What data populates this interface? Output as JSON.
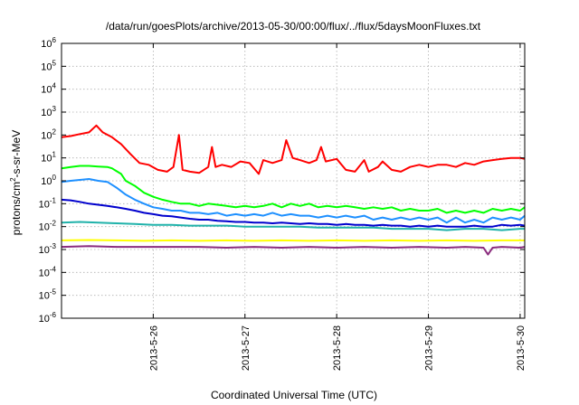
{
  "chart_data": {
    "type": "line",
    "title": "/data/run/goesPlots/archive/2013-05-30/00:00/flux/../flux/5daysMoonFluxes.txt",
    "xlabel": "Coordinated Universal Time (UTC)",
    "ylabel": "protons/cm²-s-sr-MeV",
    "ylabel_parts": [
      "protons/cm",
      "2",
      "-s-sr-MeV"
    ],
    "y_scale": "log",
    "ylim": [
      1e-06,
      1000000.0
    ],
    "xlim": [
      0,
      5.05
    ],
    "x_ticks": [
      {
        "x": 1,
        "label": "2013-5-26"
      },
      {
        "x": 2,
        "label": "2013-5-27"
      },
      {
        "x": 3,
        "label": "2013-5-28"
      },
      {
        "x": 4,
        "label": "2013-5-29"
      },
      {
        "x": 5,
        "label": "2013-5-30"
      }
    ],
    "y_ticks": [
      {
        "exp": -6,
        "base": "10",
        "power": "-6"
      },
      {
        "exp": -5,
        "base": "10",
        "power": "-5"
      },
      {
        "exp": -4,
        "base": "10",
        "power": "-4"
      },
      {
        "exp": -3,
        "base": "10",
        "power": "-3"
      },
      {
        "exp": -2,
        "base": "10",
        "power": "-2"
      },
      {
        "exp": -1,
        "base": "10",
        "power": "-1"
      },
      {
        "exp": 0,
        "base": "10",
        "power": "0"
      },
      {
        "exp": 1,
        "base": "10",
        "power": "1"
      },
      {
        "exp": 2,
        "base": "10",
        "power": "2"
      },
      {
        "exp": 3,
        "base": "10",
        "power": "3"
      },
      {
        "exp": 4,
        "base": "10",
        "power": "4"
      },
      {
        "exp": 5,
        "base": "10",
        "power": "5"
      },
      {
        "exp": 6,
        "base": "10",
        "power": "6"
      }
    ],
    "grid": true,
    "series": [
      {
        "color": "#ff0000",
        "values": [
          [
            0.0,
            80
          ],
          [
            0.1,
            90
          ],
          [
            0.2,
            110
          ],
          [
            0.3,
            130
          ],
          [
            0.38,
            260
          ],
          [
            0.45,
            130
          ],
          [
            0.55,
            80
          ],
          [
            0.65,
            40
          ],
          [
            0.75,
            15
          ],
          [
            0.85,
            6
          ],
          [
            0.95,
            5
          ],
          [
            1.05,
            3
          ],
          [
            1.15,
            2.5
          ],
          [
            1.22,
            4
          ],
          [
            1.28,
            100
          ],
          [
            1.32,
            3
          ],
          [
            1.4,
            2.5
          ],
          [
            1.5,
            2.2
          ],
          [
            1.6,
            4
          ],
          [
            1.64,
            30
          ],
          [
            1.68,
            4
          ],
          [
            1.75,
            5
          ],
          [
            1.85,
            4
          ],
          [
            1.95,
            7
          ],
          [
            2.05,
            6
          ],
          [
            2.15,
            2
          ],
          [
            2.2,
            8
          ],
          [
            2.3,
            6
          ],
          [
            2.4,
            8
          ],
          [
            2.45,
            60
          ],
          [
            2.52,
            10
          ],
          [
            2.6,
            8
          ],
          [
            2.7,
            6
          ],
          [
            2.78,
            8
          ],
          [
            2.83,
            30
          ],
          [
            2.88,
            7
          ],
          [
            3.0,
            9
          ],
          [
            3.1,
            3
          ],
          [
            3.2,
            2.5
          ],
          [
            3.3,
            8
          ],
          [
            3.35,
            2.5
          ],
          [
            3.45,
            4
          ],
          [
            3.5,
            7
          ],
          [
            3.6,
            3
          ],
          [
            3.7,
            2.5
          ],
          [
            3.8,
            4
          ],
          [
            3.9,
            5
          ],
          [
            4.0,
            4
          ],
          [
            4.1,
            5
          ],
          [
            4.2,
            5
          ],
          [
            4.3,
            4
          ],
          [
            4.4,
            6
          ],
          [
            4.5,
            5
          ],
          [
            4.6,
            7
          ],
          [
            4.7,
            8
          ],
          [
            4.8,
            9
          ],
          [
            4.9,
            10
          ],
          [
            5.0,
            10
          ],
          [
            5.05,
            9
          ]
        ]
      },
      {
        "color": "#00ff00",
        "values": [
          [
            0.0,
            3.5
          ],
          [
            0.1,
            4
          ],
          [
            0.2,
            4.5
          ],
          [
            0.3,
            4.5
          ],
          [
            0.4,
            4.2
          ],
          [
            0.5,
            4
          ],
          [
            0.55,
            3.5
          ],
          [
            0.65,
            2
          ],
          [
            0.7,
            1
          ],
          [
            0.8,
            0.6
          ],
          [
            0.9,
            0.3
          ],
          [
            1.0,
            0.2
          ],
          [
            1.1,
            0.15
          ],
          [
            1.2,
            0.12
          ],
          [
            1.3,
            0.1
          ],
          [
            1.4,
            0.1
          ],
          [
            1.5,
            0.08
          ],
          [
            1.6,
            0.1
          ],
          [
            1.7,
            0.09
          ],
          [
            1.8,
            0.08
          ],
          [
            1.9,
            0.07
          ],
          [
            2.0,
            0.08
          ],
          [
            2.1,
            0.07
          ],
          [
            2.2,
            0.08
          ],
          [
            2.3,
            0.1
          ],
          [
            2.4,
            0.07
          ],
          [
            2.5,
            0.1
          ],
          [
            2.6,
            0.08
          ],
          [
            2.7,
            0.1
          ],
          [
            2.8,
            0.07
          ],
          [
            2.9,
            0.08
          ],
          [
            3.0,
            0.07
          ],
          [
            3.1,
            0.08
          ],
          [
            3.2,
            0.07
          ],
          [
            3.3,
            0.06
          ],
          [
            3.4,
            0.07
          ],
          [
            3.5,
            0.06
          ],
          [
            3.6,
            0.07
          ],
          [
            3.7,
            0.05
          ],
          [
            3.8,
            0.06
          ],
          [
            3.9,
            0.05
          ],
          [
            4.0,
            0.05
          ],
          [
            4.1,
            0.06
          ],
          [
            4.2,
            0.04
          ],
          [
            4.3,
            0.05
          ],
          [
            4.4,
            0.04
          ],
          [
            4.5,
            0.05
          ],
          [
            4.6,
            0.04
          ],
          [
            4.7,
            0.06
          ],
          [
            4.8,
            0.05
          ],
          [
            4.9,
            0.06
          ],
          [
            5.0,
            0.05
          ],
          [
            5.05,
            0.07
          ]
        ]
      },
      {
        "color": "#1e90ff",
        "values": [
          [
            0.0,
            0.9
          ],
          [
            0.1,
            1
          ],
          [
            0.2,
            1.1
          ],
          [
            0.3,
            1.2
          ],
          [
            0.4,
            1
          ],
          [
            0.5,
            0.9
          ],
          [
            0.6,
            0.5
          ],
          [
            0.7,
            0.25
          ],
          [
            0.8,
            0.15
          ],
          [
            0.9,
            0.1
          ],
          [
            1.0,
            0.07
          ],
          [
            1.1,
            0.06
          ],
          [
            1.2,
            0.05
          ],
          [
            1.3,
            0.05
          ],
          [
            1.4,
            0.04
          ],
          [
            1.5,
            0.04
          ],
          [
            1.6,
            0.035
          ],
          [
            1.7,
            0.04
          ],
          [
            1.8,
            0.03
          ],
          [
            1.9,
            0.035
          ],
          [
            2.0,
            0.03
          ],
          [
            2.1,
            0.035
          ],
          [
            2.2,
            0.03
          ],
          [
            2.3,
            0.04
          ],
          [
            2.4,
            0.03
          ],
          [
            2.5,
            0.035
          ],
          [
            2.6,
            0.03
          ],
          [
            2.7,
            0.03
          ],
          [
            2.8,
            0.025
          ],
          [
            2.9,
            0.03
          ],
          [
            3.0,
            0.025
          ],
          [
            3.1,
            0.03
          ],
          [
            3.2,
            0.025
          ],
          [
            3.3,
            0.03
          ],
          [
            3.4,
            0.02
          ],
          [
            3.5,
            0.025
          ],
          [
            3.6,
            0.02
          ],
          [
            3.7,
            0.025
          ],
          [
            3.8,
            0.02
          ],
          [
            3.9,
            0.025
          ],
          [
            4.0,
            0.02
          ],
          [
            4.1,
            0.025
          ],
          [
            4.2,
            0.015
          ],
          [
            4.3,
            0.025
          ],
          [
            4.4,
            0.015
          ],
          [
            4.5,
            0.02
          ],
          [
            4.6,
            0.015
          ],
          [
            4.7,
            0.025
          ],
          [
            4.8,
            0.02
          ],
          [
            4.9,
            0.025
          ],
          [
            5.0,
            0.02
          ],
          [
            5.05,
            0.03
          ]
        ]
      },
      {
        "color": "#0000cd",
        "values": [
          [
            0.0,
            0.15
          ],
          [
            0.1,
            0.14
          ],
          [
            0.2,
            0.12
          ],
          [
            0.3,
            0.1
          ],
          [
            0.4,
            0.09
          ],
          [
            0.5,
            0.08
          ],
          [
            0.6,
            0.07
          ],
          [
            0.7,
            0.06
          ],
          [
            0.8,
            0.05
          ],
          [
            0.9,
            0.04
          ],
          [
            1.0,
            0.035
          ],
          [
            1.1,
            0.03
          ],
          [
            1.2,
            0.028
          ],
          [
            1.3,
            0.025
          ],
          [
            1.4,
            0.022
          ],
          [
            1.5,
            0.02
          ],
          [
            1.6,
            0.02
          ],
          [
            1.7,
            0.018
          ],
          [
            1.8,
            0.017
          ],
          [
            1.9,
            0.016
          ],
          [
            2.0,
            0.016
          ],
          [
            2.1,
            0.015
          ],
          [
            2.2,
            0.015
          ],
          [
            2.3,
            0.014
          ],
          [
            2.4,
            0.015
          ],
          [
            2.5,
            0.014
          ],
          [
            2.6,
            0.013
          ],
          [
            2.7,
            0.014
          ],
          [
            2.8,
            0.013
          ],
          [
            2.9,
            0.013
          ],
          [
            3.0,
            0.012
          ],
          [
            3.1,
            0.013
          ],
          [
            3.2,
            0.012
          ],
          [
            3.3,
            0.012
          ],
          [
            3.4,
            0.011
          ],
          [
            3.5,
            0.012
          ],
          [
            3.6,
            0.011
          ],
          [
            3.7,
            0.011
          ],
          [
            3.8,
            0.01
          ],
          [
            3.9,
            0.011
          ],
          [
            4.0,
            0.01
          ],
          [
            4.1,
            0.011
          ],
          [
            4.2,
            0.01
          ],
          [
            4.3,
            0.01
          ],
          [
            4.4,
            0.01
          ],
          [
            4.5,
            0.011
          ],
          [
            4.6,
            0.01
          ],
          [
            4.7,
            0.01
          ],
          [
            4.8,
            0.012
          ],
          [
            4.9,
            0.011
          ],
          [
            5.0,
            0.012
          ],
          [
            5.05,
            0.011
          ]
        ]
      },
      {
        "color": "#20b2aa",
        "values": [
          [
            0.0,
            0.015
          ],
          [
            0.2,
            0.016
          ],
          [
            0.4,
            0.015
          ],
          [
            0.6,
            0.014
          ],
          [
            0.8,
            0.013
          ],
          [
            1.0,
            0.012
          ],
          [
            1.2,
            0.012
          ],
          [
            1.4,
            0.011
          ],
          [
            1.6,
            0.011
          ],
          [
            1.8,
            0.011
          ],
          [
            2.0,
            0.01
          ],
          [
            2.2,
            0.01
          ],
          [
            2.4,
            0.01
          ],
          [
            2.6,
            0.01
          ],
          [
            2.8,
            0.009
          ],
          [
            3.0,
            0.009
          ],
          [
            3.2,
            0.009
          ],
          [
            3.4,
            0.009
          ],
          [
            3.6,
            0.008
          ],
          [
            3.8,
            0.008
          ],
          [
            4.0,
            0.008
          ],
          [
            4.2,
            0.007
          ],
          [
            4.4,
            0.008
          ],
          [
            4.6,
            0.008
          ],
          [
            4.8,
            0.007
          ],
          [
            5.0,
            0.008
          ],
          [
            5.05,
            0.008
          ]
        ]
      },
      {
        "color": "#ffff00",
        "values": [
          [
            0.0,
            0.0025
          ],
          [
            0.3,
            0.0026
          ],
          [
            0.6,
            0.0025
          ],
          [
            0.9,
            0.0024
          ],
          [
            1.2,
            0.0025
          ],
          [
            1.5,
            0.0024
          ],
          [
            1.8,
            0.0025
          ],
          [
            2.1,
            0.0024
          ],
          [
            2.4,
            0.0025
          ],
          [
            2.7,
            0.0024
          ],
          [
            3.0,
            0.0025
          ],
          [
            3.3,
            0.0024
          ],
          [
            3.6,
            0.0025
          ],
          [
            3.9,
            0.0024
          ],
          [
            4.2,
            0.0025
          ],
          [
            4.5,
            0.0024
          ],
          [
            4.8,
            0.0025
          ],
          [
            5.05,
            0.0025
          ]
        ]
      },
      {
        "color": "#8b2c7e",
        "values": [
          [
            0.0,
            0.0013
          ],
          [
            0.3,
            0.0014
          ],
          [
            0.6,
            0.0013
          ],
          [
            0.9,
            0.0013
          ],
          [
            1.2,
            0.0013
          ],
          [
            1.5,
            0.0013
          ],
          [
            1.8,
            0.0012
          ],
          [
            2.1,
            0.0013
          ],
          [
            2.4,
            0.0012
          ],
          [
            2.7,
            0.0013
          ],
          [
            3.0,
            0.0012
          ],
          [
            3.3,
            0.0013
          ],
          [
            3.6,
            0.0012
          ],
          [
            3.9,
            0.0013
          ],
          [
            4.2,
            0.0012
          ],
          [
            4.4,
            0.0013
          ],
          [
            4.6,
            0.0012
          ],
          [
            4.65,
            0.0006
          ],
          [
            4.7,
            0.0012
          ],
          [
            4.8,
            0.0013
          ],
          [
            5.0,
            0.0012
          ],
          [
            5.05,
            0.0013
          ]
        ]
      }
    ]
  }
}
